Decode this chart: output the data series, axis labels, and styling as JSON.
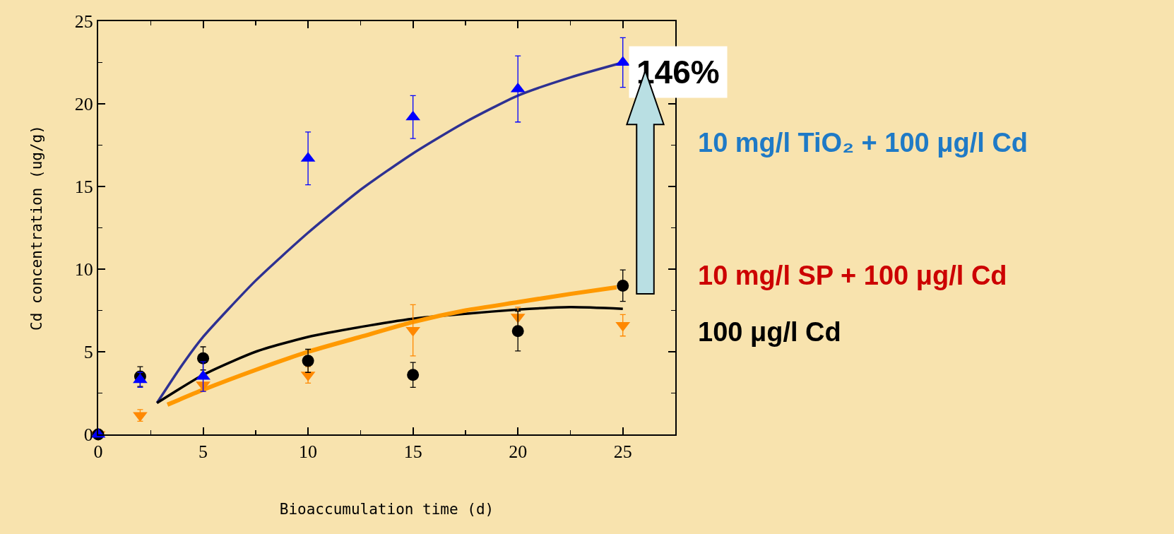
{
  "chart_data": {
    "type": "scatter",
    "xlabel": "Bioaccumulation time (d)",
    "ylabel": "Cd concentration (ug/g)",
    "x": [
      0,
      2,
      5,
      10,
      15,
      20,
      25
    ],
    "series": [
      {
        "color": "#0000ff",
        "marker": "triangle",
        "values": [
          0,
          3.3,
          3.5,
          16.7,
          19.2,
          20.9,
          22.5
        ],
        "errors": [
          null,
          0.45,
          0.9,
          1.6,
          1.3,
          2.0,
          1.5
        ]
      },
      {
        "color": "#000000",
        "marker": "circle",
        "values": [
          0,
          3.5,
          4.6,
          4.45,
          3.6,
          6.25,
          9.0
        ],
        "errors": [
          null,
          0.6,
          0.7,
          0.7,
          0.75,
          1.2,
          0.95
        ]
      },
      {
        "color": "#ff8800",
        "marker": "triangle-down",
        "values": [
          0,
          1.15,
          3.0,
          3.6,
          6.3,
          7.1,
          6.6
        ],
        "errors": [
          null,
          0.35,
          0.4,
          0.5,
          1.55,
          0.6,
          0.65
        ]
      },
      {
        "type": "line",
        "color": "#2e3192",
        "x": [
          2.8,
          4,
          5,
          7.5,
          10,
          12.5,
          15,
          17.5,
          20,
          22.5,
          25
        ],
        "values": [
          1.9,
          4.2,
          5.9,
          9.3,
          12.2,
          14.8,
          17.0,
          18.9,
          20.5,
          21.6,
          22.5
        ]
      },
      {
        "type": "line",
        "color": "#000000",
        "x": [
          2.8,
          5,
          7.5,
          10,
          12.5,
          15,
          17.5,
          20,
          22.5,
          25
        ],
        "values": [
          1.9,
          3.6,
          5.0,
          5.9,
          6.5,
          7.0,
          7.3,
          7.55,
          7.7,
          7.6
        ]
      },
      {
        "type": "line",
        "color": "#ff9900",
        "x": [
          3.3,
          5,
          7.5,
          10,
          12.5,
          15,
          17.5,
          20,
          22.5,
          24.7
        ],
        "values": [
          1.8,
          2.7,
          3.9,
          5.0,
          5.9,
          6.8,
          7.5,
          8.0,
          8.5,
          8.9
        ]
      }
    ],
    "xlim": [
      0,
      27.5
    ],
    "xticks": [
      0,
      {
        "value": 2.5,
        "label": null
      },
      5,
      {
        "value": 7.5,
        "label": null
      },
      10,
      {
        "value": 12.5,
        "label": null
      },
      15,
      {
        "value": 17.5,
        "label": null
      },
      20,
      {
        "value": 22.5,
        "label": null
      },
      25,
      {
        "value": 27.5,
        "label": null
      }
    ],
    "ylim": [
      0,
      25
    ],
    "yticks": [
      0,
      {
        "value": 2.5,
        "label": null
      },
      5,
      {
        "value": 7.5,
        "label": null
      },
      10,
      {
        "value": 12.5,
        "label": null
      },
      15,
      {
        "value": 17.5,
        "label": null
      },
      20,
      {
        "value": 22.5,
        "label": null
      },
      25
    ],
    "grid": false,
    "annotations": [
      "146%",
      "10 mg/l TiO₂ + 100 μg/l Cd",
      "10 mg/l SP + 100 μg/l Cd",
      "100 μg/l Cd"
    ]
  }
}
